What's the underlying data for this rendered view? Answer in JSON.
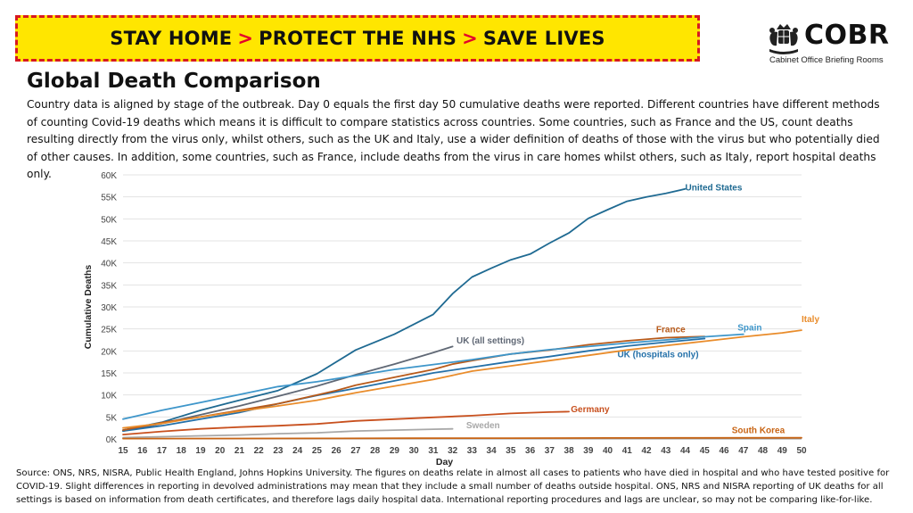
{
  "banner": {
    "part1": "STAY HOME",
    "part2": "PROTECT THE NHS",
    "part3": "SAVE LIVES",
    "separator": ">",
    "bg_color": "#ffe600",
    "border_color": "#d71920"
  },
  "logo": {
    "word": "COBR",
    "subtitle": "Cabinet Office Briefing Rooms",
    "icon": "royal-crest-icon"
  },
  "heading": "Global Death Comparison",
  "intro": "Country data is aligned by stage of the outbreak. Day 0 equals the first day 50 cumulative deaths were reported. Different countries have different methods of counting Covid-19 deaths which means it is difficult to compare statistics across countries. Some countries, such as France and the US, count deaths resulting directly from the virus only, whilst others, such as the UK and Italy, use a wider definition of deaths of those with the virus but who potentially died of other causes. In addition, some countries, such as France, include deaths from the virus in care homes whilst others, such as Italy, report hospital deaths only.",
  "footer": "Source: ONS, NRS, NISRA, Public Health England, Johns Hopkins University. The figures on deaths relate in almost all cases to patients who have died in hospital and who have tested positive for COVID-19. Slight differences in reporting in devolved administrations may mean that they include a small number of deaths outside hospital. ONS, NRS and NISRA reporting of UK deaths for all settings is based on information from death certificates, and therefore lags daily hospital data. International reporting procedures and lags are unclear, so may not be comparing like-for-like.",
  "chart_data": {
    "type": "line",
    "xlabel": "Day",
    "ylabel": "Cumulative Deaths",
    "xlim": [
      15,
      50
    ],
    "ylim": [
      0,
      60000
    ],
    "x_ticks": [
      15,
      16,
      17,
      18,
      19,
      20,
      21,
      22,
      23,
      24,
      25,
      26,
      27,
      28,
      29,
      30,
      31,
      32,
      33,
      34,
      35,
      36,
      37,
      38,
      39,
      40,
      41,
      42,
      43,
      44,
      45,
      46,
      47,
      48,
      49,
      50
    ],
    "y_ticks": [
      0,
      5000,
      10000,
      15000,
      20000,
      25000,
      30000,
      35000,
      40000,
      45000,
      50000,
      55000,
      60000
    ],
    "y_tick_labels": [
      "0K",
      "5K",
      "10K",
      "15K",
      "20K",
      "25K",
      "30K",
      "35K",
      "40K",
      "45K",
      "50K",
      "55K",
      "60K"
    ],
    "grid": true,
    "series": [
      {
        "name": "United States",
        "color": "#1f6a92",
        "label_at": [
          44,
          56500
        ],
        "x": [
          15,
          17,
          19,
          21,
          23,
          25,
          27,
          29,
          31,
          32,
          33,
          34,
          35,
          36,
          37,
          38,
          39,
          40,
          41,
          42,
          43,
          44
        ],
        "y": [
          2000,
          3800,
          6500,
          8800,
          11000,
          14800,
          20200,
          23800,
          28300,
          33000,
          36800,
          38800,
          40700,
          42000,
          44500,
          46800,
          50100,
          52100,
          54000,
          55000,
          55800,
          56800
        ]
      },
      {
        "name": "UK (all settings)",
        "color": "#606875",
        "label_at": [
          32.2,
          21700
        ],
        "x": [
          15,
          17,
          19,
          21,
          23,
          25,
          27,
          29,
          31,
          32
        ],
        "y": [
          1800,
          3500,
          5500,
          7500,
          9700,
          12000,
          14600,
          17000,
          19600,
          21000
        ]
      },
      {
        "name": "UK (hospitals only)",
        "color": "#2470a8",
        "label_at": [
          40.5,
          18500
        ],
        "x": [
          15,
          17,
          19,
          21,
          23,
          25,
          27,
          29,
          31,
          33,
          35,
          37,
          39,
          41,
          43,
          45
        ],
        "y": [
          1800,
          3000,
          4500,
          6000,
          8000,
          9900,
          11500,
          13200,
          15000,
          16300,
          17600,
          18700,
          20000,
          21100,
          22000,
          22800
        ]
      },
      {
        "name": "France",
        "color": "#b85a1a",
        "label_at": [
          42.5,
          24200
        ],
        "x": [
          15,
          17,
          19,
          21,
          23,
          25,
          26,
          27,
          29,
          31,
          32,
          33,
          35,
          37,
          39,
          41,
          43,
          45
        ],
        "y": [
          2000,
          3700,
          5000,
          6500,
          8000,
          10000,
          11000,
          12200,
          14000,
          15800,
          17000,
          17800,
          19300,
          20200,
          21400,
          22300,
          23000,
          23300
        ]
      },
      {
        "name": "Spain",
        "color": "#3e96ca",
        "label_at": [
          46.7,
          24600
        ],
        "x": [
          15,
          17,
          19,
          21,
          23,
          25,
          27,
          29,
          31,
          33,
          35,
          37,
          39,
          41,
          43,
          45,
          47
        ],
        "y": [
          4500,
          6500,
          8300,
          10100,
          11900,
          13000,
          14400,
          15800,
          16900,
          18000,
          19300,
          20300,
          21000,
          21800,
          22500,
          23200,
          23800
        ]
      },
      {
        "name": "Italy",
        "color": "#e98c2b",
        "label_at": [
          50,
          26600
        ],
        "x": [
          15,
          17,
          19,
          21,
          23,
          25,
          27,
          29,
          31,
          33,
          35,
          37,
          39,
          41,
          43,
          45,
          47,
          49,
          50
        ],
        "y": [
          2500,
          3500,
          5000,
          6300,
          7500,
          8800,
          10500,
          12000,
          13500,
          15400,
          16600,
          17800,
          19000,
          20200,
          21200,
          22200,
          23200,
          24100,
          24700
        ]
      },
      {
        "name": "Germany",
        "color": "#c8501e",
        "label_at": [
          38.1,
          6100
        ],
        "x": [
          15,
          17,
          19,
          21,
          23,
          25,
          27,
          29,
          31,
          33,
          35,
          37,
          38
        ],
        "y": [
          1000,
          1700,
          2300,
          2700,
          3000,
          3400,
          4100,
          4500,
          4900,
          5300,
          5800,
          6100,
          6200
        ]
      },
      {
        "name": "Sweden",
        "color": "#a8a8a8",
        "label_at": [
          32.7,
          2400
        ],
        "x": [
          15,
          17,
          19,
          21,
          23,
          25,
          27,
          29,
          31,
          32
        ],
        "y": [
          300,
          500,
          700,
          900,
          1200,
          1400,
          1800,
          2000,
          2200,
          2300
        ]
      },
      {
        "name": "South Korea",
        "color": "#c86414",
        "label_at": [
          46.4,
          1300
        ],
        "x": [
          15,
          20,
          25,
          30,
          35,
          40,
          45,
          50
        ],
        "y": [
          90,
          110,
          130,
          160,
          190,
          220,
          240,
          260
        ]
      }
    ]
  }
}
